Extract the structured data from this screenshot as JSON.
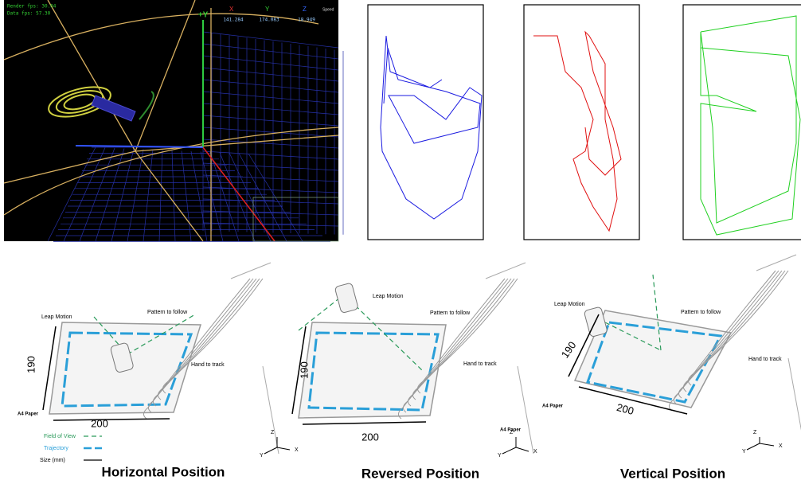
{
  "viewer": {
    "render_fps": "Render fps: 30.04",
    "data_fps": "Data fps: 57.30",
    "axis_y": "+Y",
    "readout": {
      "headers": [
        "X",
        "Y",
        "Z",
        "Speed"
      ],
      "values": [
        "141.284",
        "174.083",
        "18.949"
      ]
    }
  },
  "panels": [
    {
      "title": "Horizontal Position",
      "sensor": "Leap Motion",
      "pattern": "Pattern to follow",
      "hand": "Hand to track",
      "height": "190",
      "width": "200",
      "paper": "A4 Paper",
      "legend": [
        "Field of View",
        "Trajectory",
        "Size (mm)"
      ],
      "axes": [
        "Z",
        "Y",
        "X"
      ]
    },
    {
      "title": "Reversed Position",
      "sensor": "Leap Motion",
      "pattern": "Pattern to follow",
      "hand": "Hand to track",
      "height": "190",
      "width": "200",
      "paper": "A4 Paper",
      "axes": [
        "Z",
        "Y",
        "X"
      ]
    },
    {
      "title": "Vertical Position",
      "sensor": "Leap Motion",
      "pattern": "Pattern to follow",
      "hand": "Hand to track",
      "height": "190",
      "width": "200",
      "paper": "A4 Paper",
      "axes": [
        "Z",
        "Y",
        "X"
      ]
    }
  ]
}
